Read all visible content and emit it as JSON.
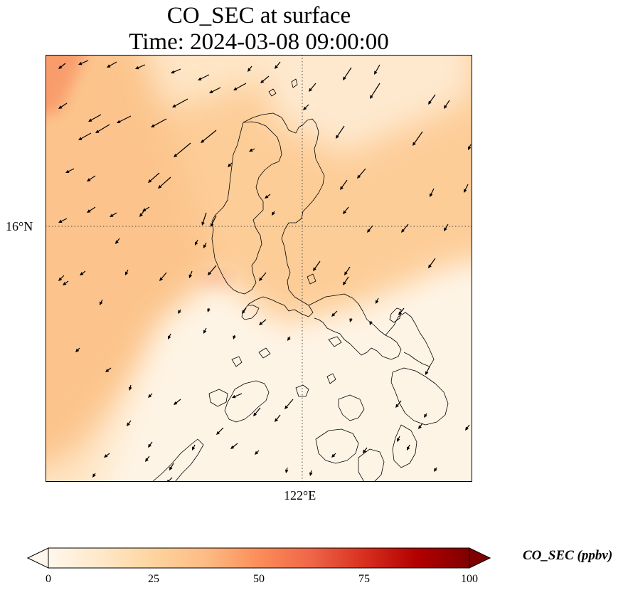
{
  "title": {
    "line1": "CO_SEC at surface",
    "line2": "Time: 2024-03-08 09:00:00"
  },
  "map": {
    "lat_label": "16°N",
    "lon_label": "122°E",
    "gridline_style": "dotted"
  },
  "colorbar": {
    "label": "CO_SEC (ppbv)",
    "ticks": [
      "0",
      "25",
      "50",
      "75",
      "100"
    ],
    "colormap": "OrRd",
    "extend": "both",
    "colors": [
      "#fff7ec",
      "#fee8c8",
      "#fdd49e",
      "#fdbb84",
      "#fc8d59",
      "#ef6548",
      "#d7301f",
      "#b30000",
      "#7f0000"
    ]
  },
  "colors": {
    "background": "#ffffff",
    "coastline": "#000000",
    "arrows": "#000000"
  }
}
